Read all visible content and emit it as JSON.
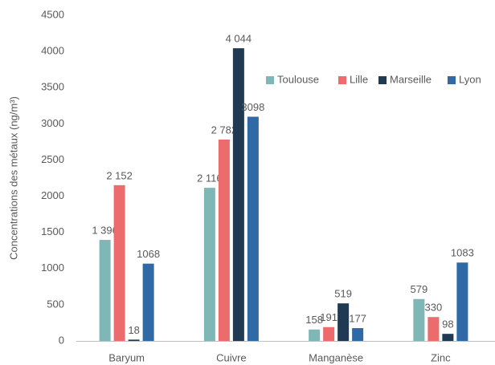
{
  "chart_data": {
    "type": "bar",
    "y_label": "Concentrations des métaux (ng/m³)",
    "categories": [
      "Baryum",
      "Cuivre",
      "Manganèse",
      "Zinc"
    ],
    "series": [
      {
        "name": "Toulouse",
        "color": "#7fb7b7",
        "values": [
          1396,
          2116,
          158,
          579
        ],
        "value_labels": [
          "1 396",
          "2 116",
          "158",
          "579"
        ]
      },
      {
        "name": "Lille",
        "color": "#ec6b6d",
        "values": [
          2152,
          2782,
          191,
          330
        ],
        "value_labels": [
          "2 152",
          "2 782",
          "191",
          "330"
        ]
      },
      {
        "name": "Marseille",
        "color": "#1f3a52",
        "values": [
          18,
          4044,
          519,
          98
        ],
        "value_labels": [
          "18",
          "4 044",
          "519",
          "98"
        ]
      },
      {
        "name": "Lyon",
        "color": "#2f6aa7",
        "values": [
          1068,
          3098,
          177,
          1083
        ]
      }
    ],
    "ylim": [
      0,
      4500
    ],
    "yticks": [
      0,
      500,
      1000,
      1500,
      2000,
      2500,
      3000,
      3500,
      4000,
      4500
    ],
    "grid": false,
    "legend": "top-right"
  }
}
